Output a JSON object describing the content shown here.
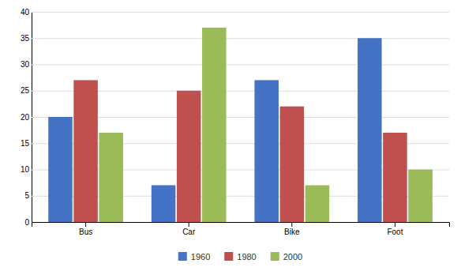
{
  "chart_data": {
    "type": "bar",
    "categories": [
      "Bus",
      "Car",
      "Bike",
      "Foot"
    ],
    "series": [
      {
        "name": "1960",
        "color": "#4472C4",
        "values": [
          20,
          7,
          27,
          35
        ]
      },
      {
        "name": "1980",
        "color": "#C0504D",
        "values": [
          27,
          25,
          22,
          17
        ]
      },
      {
        "name": "2000",
        "color": "#9BBB59",
        "values": [
          17,
          37,
          7,
          10
        ]
      }
    ],
    "ylim": [
      0,
      40
    ],
    "yticks": [
      0,
      5,
      10,
      15,
      20,
      25,
      30,
      35,
      40
    ],
    "grid": true,
    "legend": "bottom"
  }
}
